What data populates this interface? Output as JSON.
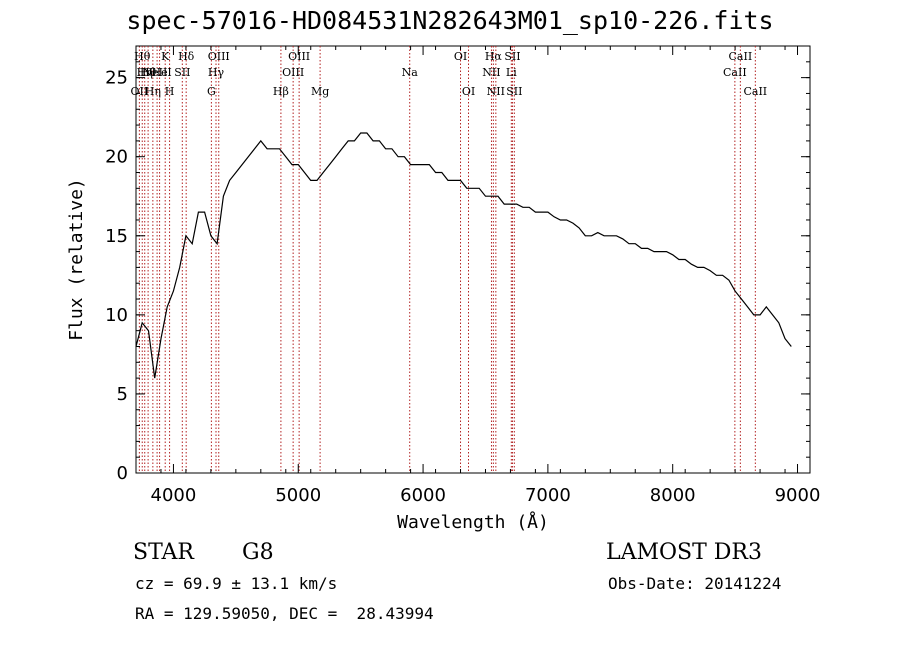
{
  "chart_data": {
    "type": "line",
    "title": "spec-57016-HD084531N282643M01_sp10-226.fits",
    "xlabel": "Wavelength (Å)",
    "ylabel": "Flux (relative)",
    "xlim": [
      3700,
      9100
    ],
    "ylim": [
      0,
      27
    ],
    "x_ticks": [
      4000,
      5000,
      6000,
      7000,
      8000,
      9000
    ],
    "y_ticks": [
      0,
      5,
      10,
      15,
      20,
      25
    ],
    "grid": false,
    "line_color": "#000000",
    "marker_color": "#b22222",
    "series": [
      {
        "x": [
          3700,
          3750,
          3800,
          3850,
          3900,
          3950,
          4000,
          4050,
          4100,
          4150,
          4200,
          4250,
          4300,
          4350,
          4400,
          4450,
          4500,
          4550,
          4600,
          4650,
          4700,
          4750,
          4800,
          4850,
          4900,
          4950,
          5000,
          5050,
          5100,
          5150,
          5200,
          5250,
          5300,
          5350,
          5400,
          5450,
          5500,
          5550,
          5600,
          5650,
          5700,
          5750,
          5800,
          5850,
          5900,
          5950,
          6000,
          6050,
          6100,
          6150,
          6200,
          6250,
          6300,
          6350,
          6400,
          6450,
          6500,
          6550,
          6600,
          6650,
          6700,
          6750,
          6800,
          6850,
          6900,
          6950,
          7000,
          7050,
          7100,
          7150,
          7200,
          7250,
          7300,
          7350,
          7400,
          7450,
          7500,
          7550,
          7600,
          7650,
          7700,
          7750,
          7800,
          7850,
          7900,
          7950,
          8000,
          8050,
          8100,
          8150,
          8200,
          8250,
          8300,
          8350,
          8400,
          8450,
          8500,
          8550,
          8600,
          8650,
          8700,
          8750,
          8800,
          8850,
          8900,
          8950
        ],
        "y": [
          8.0,
          9.5,
          9.0,
          6.0,
          8.5,
          10.5,
          11.5,
          13.0,
          15.0,
          14.5,
          16.5,
          16.5,
          15.0,
          14.5,
          17.5,
          18.5,
          19.0,
          19.5,
          20.0,
          20.5,
          21.0,
          20.5,
          20.5,
          20.5,
          20.0,
          19.5,
          19.5,
          19.0,
          18.5,
          18.5,
          19.0,
          19.5,
          20.0,
          20.5,
          21.0,
          21.0,
          21.5,
          21.5,
          21.0,
          21.0,
          20.5,
          20.5,
          20.0,
          20.0,
          19.5,
          19.5,
          19.5,
          19.5,
          19.0,
          19.0,
          18.5,
          18.5,
          18.5,
          18.0,
          18.0,
          18.0,
          17.5,
          17.5,
          17.5,
          17.0,
          17.0,
          17.0,
          16.8,
          16.8,
          16.5,
          16.5,
          16.5,
          16.2,
          16.0,
          16.0,
          15.8,
          15.5,
          15.0,
          15.0,
          15.2,
          15.0,
          15.0,
          15.0,
          14.8,
          14.5,
          14.5,
          14.2,
          14.2,
          14.0,
          14.0,
          14.0,
          13.8,
          13.5,
          13.5,
          13.2,
          13.0,
          13.0,
          12.8,
          12.5,
          12.5,
          12.2,
          11.5,
          11.0,
          10.5,
          10.0,
          10.0,
          10.5,
          10.0,
          9.5,
          8.5,
          8.0
        ]
      }
    ],
    "spectral_markers": [
      {
        "x": 3727,
        "label": "OII",
        "row": 2
      },
      {
        "x": 3750,
        "label": "Hθ",
        "row": 0
      },
      {
        "x": 3770,
        "label": "Hη",
        "row": 1
      },
      {
        "x": 3797,
        "label": "Hθ",
        "row": 1
      },
      {
        "x": 3835,
        "label": "Hη",
        "row": 2
      },
      {
        "x": 3869,
        "label": "NeIII",
        "row": 1
      },
      {
        "x": 3889,
        "label": "He",
        "row": 1
      },
      {
        "x": 3934,
        "label": "K",
        "row": 0
      },
      {
        "x": 3969,
        "label": "H",
        "row": 2
      },
      {
        "x": 4071,
        "label": "SII",
        "row": 1
      },
      {
        "x": 4102,
        "label": "Hδ",
        "row": 0
      },
      {
        "x": 4304,
        "label": "G",
        "row": 2
      },
      {
        "x": 4341,
        "label": "Hγ",
        "row": 1
      },
      {
        "x": 4363,
        "label": "OIII",
        "row": 0
      },
      {
        "x": 4861,
        "label": "Hβ",
        "row": 2
      },
      {
        "x": 4959,
        "label": "OIII",
        "row": 1
      },
      {
        "x": 5007,
        "label": "OIII",
        "row": 0
      },
      {
        "x": 5175,
        "label": "Mg",
        "row": 2
      },
      {
        "x": 5893,
        "label": "Na",
        "row": 1
      },
      {
        "x": 6300,
        "label": "OI",
        "row": 0
      },
      {
        "x": 6364,
        "label": "OI",
        "row": 2
      },
      {
        "x": 6548,
        "label": "NII",
        "row": 1
      },
      {
        "x": 6563,
        "label": "Hα",
        "row": 0
      },
      {
        "x": 6583,
        "label": "NII",
        "row": 2
      },
      {
        "x": 6707,
        "label": "Li",
        "row": 1
      },
      {
        "x": 6716,
        "label": "SII",
        "row": 0
      },
      {
        "x": 6731,
        "label": "SII",
        "row": 2
      },
      {
        "x": 8498,
        "label": "CaII",
        "row": 1
      },
      {
        "x": 8542,
        "label": "CaII",
        "row": 0
      },
      {
        "x": 8662,
        "label": "CaII",
        "row": 2
      }
    ]
  },
  "info": {
    "object_class": "STAR",
    "subclass": "G8",
    "survey": "LAMOST DR3",
    "redshift_line": "cz = 69.9 ± 13.1 km/s",
    "obs_date": "Obs-Date: 20141224",
    "coords": "RA = 129.59050, DEC =  28.43994"
  }
}
